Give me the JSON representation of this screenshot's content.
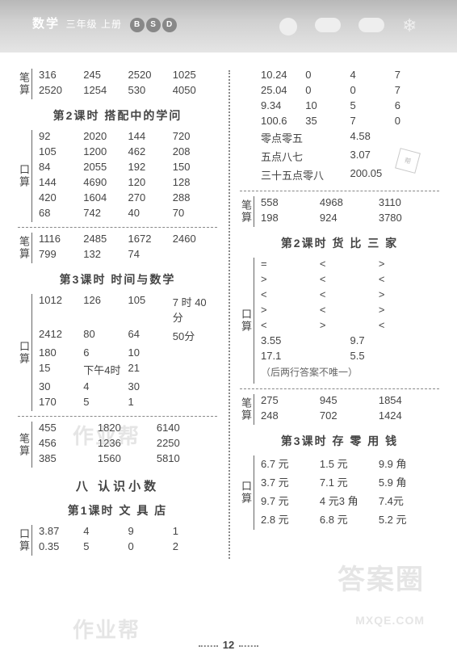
{
  "header": {
    "title": "数学",
    "sub": "三年级 上册",
    "badge1": "B",
    "badge2": "S",
    "badge3": "D"
  },
  "pageNum": "12",
  "left": {
    "b1": {
      "label": "笔算",
      "rows": [
        [
          "316",
          "245",
          "2520",
          "1025"
        ],
        [
          "2520",
          "1254",
          "530",
          "4050"
        ]
      ]
    },
    "s2": "第2课时  搭配中的学问",
    "kb2": {
      "label": "口算",
      "rows": [
        [
          "92",
          "2020",
          "144",
          "720"
        ],
        [
          "105",
          "1200",
          "462",
          "208"
        ],
        [
          "84",
          "2055",
          "192",
          "150"
        ],
        [
          "144",
          "4690",
          "120",
          "128"
        ],
        [
          "420",
          "1604",
          "270",
          "288"
        ],
        [
          "68",
          "742",
          "40",
          "70"
        ]
      ]
    },
    "bb2": {
      "label": "笔算",
      "rows": [
        [
          "1116",
          "2485",
          "1672",
          "2460"
        ],
        [
          "799",
          "132",
          "74",
          ""
        ]
      ]
    },
    "s3": "第3课时  时间与数学",
    "kb3": {
      "label": "口算",
      "rows": [
        [
          "1012",
          "126",
          "105",
          "7 时 40 分"
        ],
        [
          "2412",
          "80",
          "64",
          "50分"
        ],
        [
          "180",
          "6",
          "10",
          ""
        ],
        [
          "15",
          "下午4时",
          "21",
          ""
        ],
        [
          "30",
          "4",
          "30",
          ""
        ],
        [
          "170",
          "5",
          "1",
          ""
        ]
      ]
    },
    "bb3": {
      "label": "笔算",
      "rows": [
        [
          "455",
          "1820",
          "6140"
        ],
        [
          "456",
          "1236",
          "2250"
        ],
        [
          "385",
          "1560",
          "5810"
        ]
      ]
    },
    "unit": "八  认识小数",
    "s4": "第1课时  文 具 店",
    "kb4": {
      "label": "口算",
      "rows": [
        [
          "3.87",
          "4",
          "9",
          "1"
        ],
        [
          "0.35",
          "5",
          "0",
          "2"
        ]
      ]
    }
  },
  "right": {
    "kbtop_rows": [
      [
        "10.24",
        "0",
        "4",
        "7"
      ],
      [
        "25.04",
        "0",
        "0",
        "7"
      ],
      [
        "9.34",
        "10",
        "5",
        "6"
      ],
      [
        "100.6",
        "35",
        "7",
        "0"
      ]
    ],
    "kbtop_words": [
      [
        "零点零五",
        "4.58"
      ],
      [
        "五点八七",
        "3.07"
      ],
      [
        "三十五点零八",
        "200.05"
      ]
    ],
    "bb1": {
      "label": "笔算",
      "rows": [
        [
          "558",
          "4968",
          "3110"
        ],
        [
          "198",
          "924",
          "3780"
        ]
      ]
    },
    "s2": "第2课时  货 比 三 家",
    "kb2": {
      "label": "口算",
      "rows": [
        [
          "=",
          "<",
          ">"
        ],
        [
          ">",
          "<",
          "<"
        ],
        [
          "<",
          "<",
          ">"
        ],
        [
          ">",
          "<",
          ">"
        ],
        [
          "<",
          ">",
          "<"
        ]
      ],
      "rows2": [
        [
          "3.55",
          "9.7"
        ],
        [
          "17.1",
          "5.5"
        ]
      ],
      "note": "（后两行答案不唯一）"
    },
    "bb2": {
      "label": "笔算",
      "rows": [
        [
          "275",
          "945",
          "1854"
        ],
        [
          "248",
          "702",
          "1424"
        ]
      ]
    },
    "s3": "第3课时  存 零 用 钱",
    "kb3": {
      "label": "口算",
      "rows": [
        [
          "6.7 元",
          "1.5 元",
          "9.9 角"
        ],
        [
          "3.7 元",
          "7.1 元",
          "5.9 角"
        ],
        [
          "9.7 元",
          "4 元3 角",
          "7.4元"
        ],
        [
          "2.8 元",
          "6.8 元",
          "5.2 元"
        ]
      ]
    }
  }
}
